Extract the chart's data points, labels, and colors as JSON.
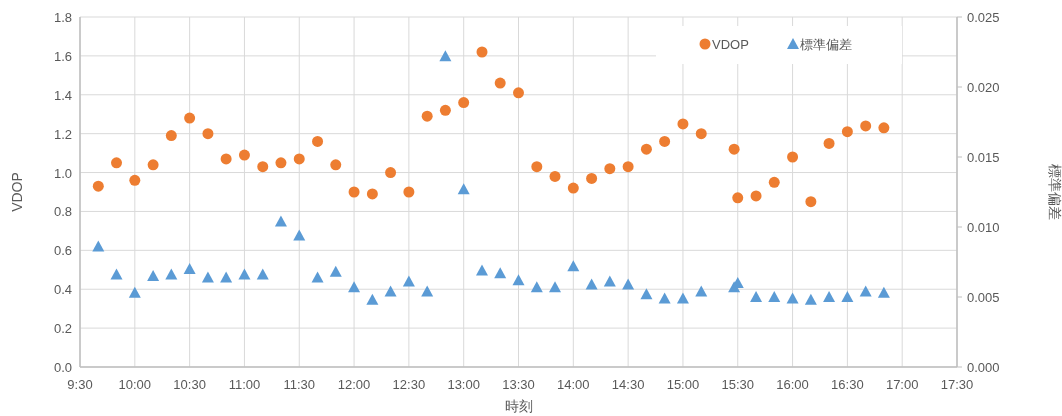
{
  "chart_data": {
    "type": "scatter",
    "xlabel": "時刻",
    "ylabel": "VDOP",
    "y2label": "標準偏差",
    "x": [
      9.667,
      9.833,
      10,
      10.167,
      10.333,
      10.5,
      10.667,
      10.833,
      11,
      11.167,
      11.333,
      11.5,
      11.667,
      11.833,
      12,
      12.167,
      12.333,
      12.5,
      12.667,
      12.833,
      13,
      13.167,
      13.333,
      13.5,
      13.667,
      13.833,
      14,
      14.167,
      14.333,
      14.5,
      14.667,
      14.833,
      15,
      15.167,
      15.467,
      15.5,
      15.667,
      15.833,
      16,
      16.167,
      16.333,
      16.5,
      16.667,
      16.833
    ],
    "series": [
      {
        "name": "VDOP",
        "color": "#ed7d31",
        "marker": "circle",
        "values": [
          0.93,
          1.05,
          0.96,
          1.04,
          1.19,
          1.28,
          1.2,
          1.07,
          1.09,
          1.03,
          1.05,
          1.07,
          1.16,
          1.04,
          0.9,
          0.89,
          1.0,
          0.9,
          1.29,
          1.32,
          1.36,
          1.62,
          1.46,
          1.41,
          1.03,
          0.98,
          0.92,
          0.97,
          1.02,
          1.03,
          1.12,
          1.16,
          1.25,
          1.2,
          1.12,
          0.87,
          0.88,
          0.95,
          1.08,
          0.85,
          1.15,
          1.21,
          1.24,
          1.23
        ]
      },
      {
        "name": "標準偏差",
        "color": "#5b9bd5",
        "marker": "triangle",
        "axis": "y2",
        "values": [
          0.0086,
          0.0066,
          0.0053,
          0.0065,
          0.0066,
          0.007,
          0.0064,
          0.0064,
          0.0066,
          0.0066,
          0.0104,
          0.0094,
          0.0064,
          0.0068,
          0.0057,
          0.0048,
          0.0054,
          0.0061,
          0.0054,
          0.0222,
          0.0127,
          0.0069,
          0.0067,
          0.0062,
          0.0057,
          0.0057,
          0.0072,
          0.0059,
          0.0061,
          0.0059,
          0.0052,
          0.0049,
          0.0049,
          0.0054,
          0.0057,
          0.006,
          0.005,
          0.005,
          0.0049,
          0.0048,
          0.005,
          0.005,
          0.0054,
          0.0053
        ]
      }
    ],
    "xlim": [
      9.5,
      17.5
    ],
    "xticks": [
      {
        "value": 9.5,
        "label": "9:30"
      },
      {
        "value": 10,
        "label": "10:00"
      },
      {
        "value": 10.5,
        "label": "10:30"
      },
      {
        "value": 11,
        "label": "11:00"
      },
      {
        "value": 11.5,
        "label": "11:30"
      },
      {
        "value": 12,
        "label": "12:00"
      },
      {
        "value": 12.5,
        "label": "12:30"
      },
      {
        "value": 13,
        "label": "13:00"
      },
      {
        "value": 13.5,
        "label": "13:30"
      },
      {
        "value": 14,
        "label": "14:00"
      },
      {
        "value": 14.5,
        "label": "14:30"
      },
      {
        "value": 15,
        "label": "15:00"
      },
      {
        "value": 15.5,
        "label": "15:30"
      },
      {
        "value": 16,
        "label": "16:00"
      },
      {
        "value": 16.5,
        "label": "16:30"
      },
      {
        "value": 17,
        "label": "17:00"
      },
      {
        "value": 17.5,
        "label": "17:30"
      }
    ],
    "ylim": [
      0,
      1.8
    ],
    "yticks": [
      {
        "value": 0,
        "label": "0.0"
      },
      {
        "value": 0.2,
        "label": "0.2"
      },
      {
        "value": 0.4,
        "label": "0.4"
      },
      {
        "value": 0.6,
        "label": "0.6"
      },
      {
        "value": 0.8,
        "label": "0.8"
      },
      {
        "value": 1,
        "label": "1.0"
      },
      {
        "value": 1.2,
        "label": "1.2"
      },
      {
        "value": 1.4,
        "label": "1.4"
      },
      {
        "value": 1.6,
        "label": "1.6"
      },
      {
        "value": 1.8,
        "label": "1.8"
      }
    ],
    "y2lim": [
      0,
      0.025
    ],
    "y2ticks": [
      {
        "value": 0,
        "label": "0.000"
      },
      {
        "value": 0.005,
        "label": "0.005"
      },
      {
        "value": 0.01,
        "label": "0.010"
      },
      {
        "value": 0.015,
        "label": "0.015"
      },
      {
        "value": 0.02,
        "label": "0.020"
      },
      {
        "value": 0.025,
        "label": "0.025"
      }
    ],
    "grid": true,
    "legend": "top right"
  }
}
